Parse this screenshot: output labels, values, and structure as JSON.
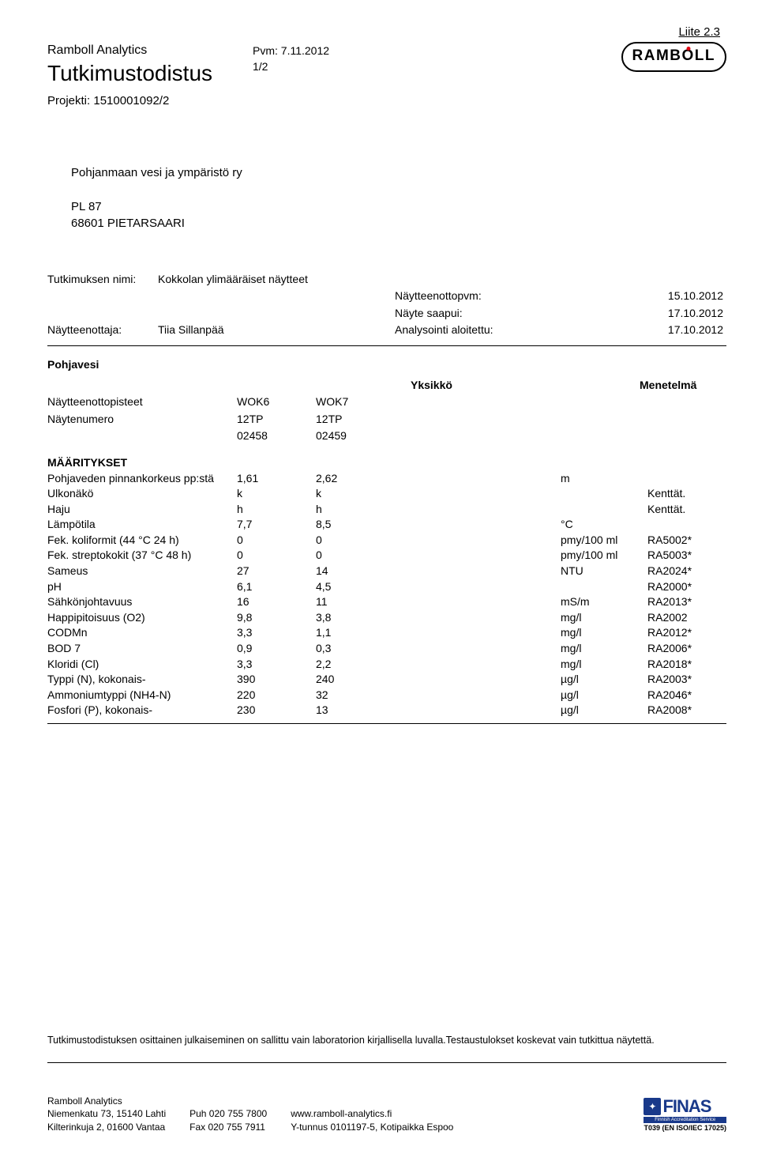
{
  "header": {
    "attachment_ref": "Liite 2.3",
    "company": "Ramboll Analytics",
    "date_label": "Pvm:",
    "date_value": "7.11.2012",
    "doc_title": "Tutkimustodistus",
    "page_indicator": "1/2",
    "project_label": "Projekti:",
    "project_value": "1510001092/2",
    "logo_text_parts": {
      "pre": "RAMB",
      "o": "O",
      "post": "LL"
    }
  },
  "recipient": {
    "name": "Pohjanmaan vesi ja ympäristö ry",
    "line1": "PL 87",
    "line2": "68601 PIETARSAARI"
  },
  "meta": {
    "study_name_label": "Tutkimuksen nimi:",
    "study_name_value": "Kokkolan ylimääräiset näytteet",
    "sampler_label": "Näytteenottaja:",
    "sampler_value": "Tiia Sillanpää",
    "sampling_date_label": "Näytteenottopvm:",
    "sampling_date_value": "15.10.2012",
    "sample_received_label": "Näyte saapui:",
    "sample_received_value": "17.10.2012",
    "analysis_started_label": "Analysointi aloitettu:",
    "analysis_started_value": "17.10.2012"
  },
  "section": {
    "title": "Pohjavesi",
    "unit_header": "Yksikkö",
    "method_header": "Menetelmä",
    "sampling_points_label": "Näytteenottopisteet",
    "sample_number_label": "Näytenumero",
    "point_codes": [
      "WOK6",
      "WOK7"
    ],
    "sample_numbers_line1": [
      "12TP",
      "12TP"
    ],
    "sample_numbers_line2": [
      "02458",
      "02459"
    ],
    "determinations_label": "MÄÄRITYKSET"
  },
  "rows": [
    {
      "param": "Pohjaveden pinnankorkeus pp:stä",
      "v1": "1,61",
      "v2": "2,62",
      "unit": "m",
      "method": ""
    },
    {
      "param": "Ulkonäkö",
      "v1": "k",
      "v2": "k",
      "unit": "",
      "method": "Kenttät."
    },
    {
      "param": "Haju",
      "v1": "h",
      "v2": "h",
      "unit": "",
      "method": "Kenttät."
    },
    {
      "param": "Lämpötila",
      "v1": "7,7",
      "v2": "8,5",
      "unit": "°C",
      "method": ""
    },
    {
      "param": "Fek. koliformit (44 °C 24 h)",
      "v1": "0",
      "v2": "0",
      "unit": "pmy/100 ml",
      "method": "RA5002*"
    },
    {
      "param": "Fek. streptokokit (37 °C 48 h)",
      "v1": "0",
      "v2": "0",
      "unit": "pmy/100 ml",
      "method": "RA5003*"
    },
    {
      "param": "Sameus",
      "v1": "27",
      "v2": "14",
      "unit": "NTU",
      "method": "RA2024*"
    },
    {
      "param": "pH",
      "v1": "6,1",
      "v2": "4,5",
      "unit": "",
      "method": "RA2000*"
    },
    {
      "param": "Sähkönjohtavuus",
      "v1": "16",
      "v2": "11",
      "unit": "mS/m",
      "method": "RA2013*"
    },
    {
      "param": "Happipitoisuus (O2)",
      "v1": "9,8",
      "v2": "3,8",
      "unit": "mg/l",
      "method": "RA2002"
    },
    {
      "param": "CODMn",
      "v1": "3,3",
      "v2": "1,1",
      "unit": "mg/l",
      "method": "RA2012*"
    },
    {
      "param": "BOD 7",
      "v1": "0,9",
      "v2": "0,3",
      "unit": "mg/l",
      "method": "RA2006*"
    },
    {
      "param": "Kloridi (Cl)",
      "v1": "3,3",
      "v2": "2,2",
      "unit": "mg/l",
      "method": "RA2018*"
    },
    {
      "param": "Typpi (N), kokonais-",
      "v1": "390",
      "v2": "240",
      "unit": "µg/l",
      "method": "RA2003*"
    },
    {
      "param": "Ammoniumtyppi (NH4-N)",
      "v1": "220",
      "v2": "32",
      "unit": "µg/l",
      "method": "RA2046*"
    },
    {
      "param": "Fosfori (P), kokonais-",
      "v1": "230",
      "v2": "13",
      "unit": "µg/l",
      "method": "RA2008*"
    }
  ],
  "disclaimer": "Tutkimustodistuksen osittainen julkaiseminen on sallittu vain laboratorion kirjallisella luvalla.Testaustulokset koskevat vain tutkittua näytettä.",
  "footer": {
    "company": "Ramboll Analytics",
    "addr1": "Niemenkatu 73, 15140 Lahti",
    "addr2": "Kilterinkuja 2, 01600 Vantaa",
    "phone": "Puh 020 755 7800",
    "fax": "Fax 020 755 7911",
    "web": "www.ramboll-analytics.fi",
    "ytunnus": "Y-tunnus 0101197-5, Kotipaikka Espoo",
    "finas_brand": "FINAS",
    "finas_sub": "Finnish Accreditation Service",
    "finas_code": "T039 (EN ISO/IEC 17025)"
  }
}
